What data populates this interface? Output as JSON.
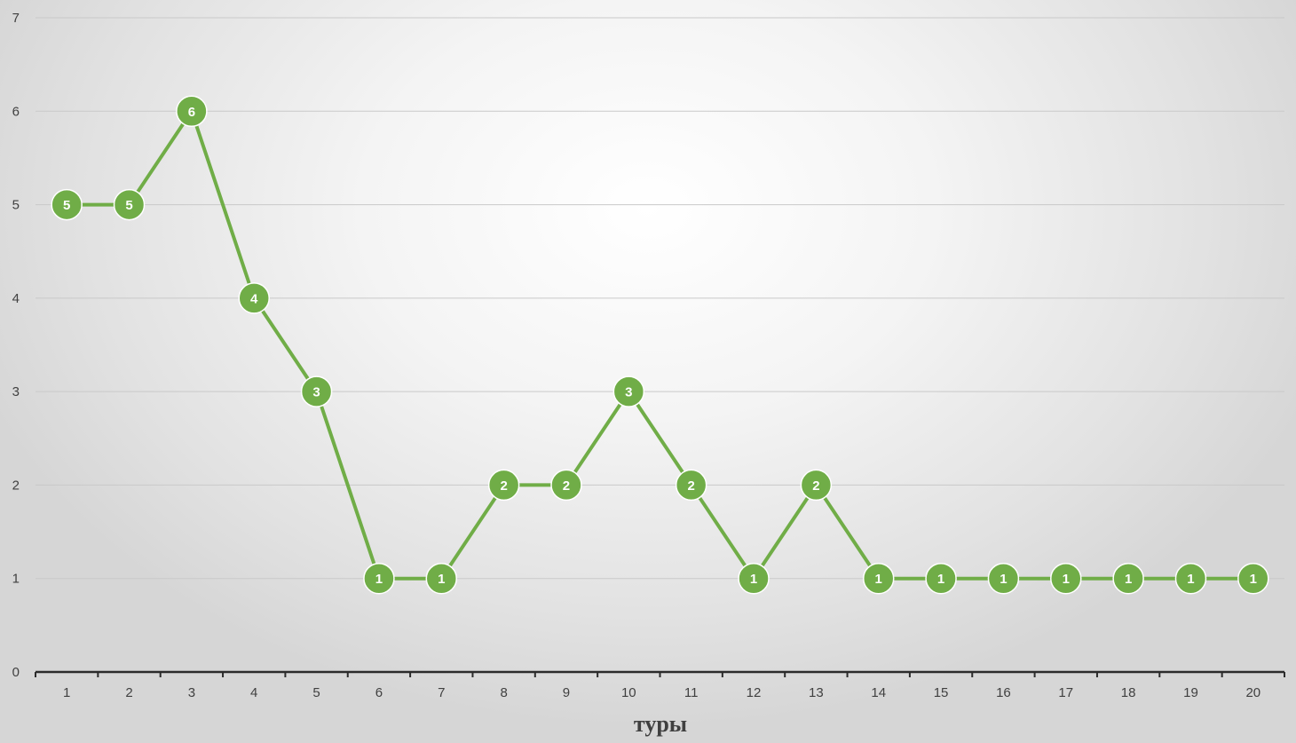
{
  "chart_data": {
    "type": "line",
    "title": "",
    "xlabel": "туры",
    "ylabel": "",
    "categories": [
      "1",
      "2",
      "3",
      "4",
      "5",
      "6",
      "7",
      "8",
      "9",
      "10",
      "11",
      "12",
      "13",
      "14",
      "15",
      "16",
      "17",
      "18",
      "19",
      "20"
    ],
    "series": [
      {
        "values": [
          5,
          5,
          6,
          4,
          3,
          1,
          1,
          2,
          2,
          3,
          2,
          1,
          2,
          1,
          1,
          1,
          1,
          1,
          1,
          1
        ]
      }
    ],
    "ylim": [
      0,
      7
    ],
    "yticks": [
      0,
      1,
      2,
      3,
      4,
      5,
      6,
      7
    ],
    "grid": true,
    "legend": "none",
    "data_labels": true,
    "colors": {
      "series": "#70ad47",
      "grid": "#c9c9c9",
      "axis": "#2b2b2b"
    }
  }
}
